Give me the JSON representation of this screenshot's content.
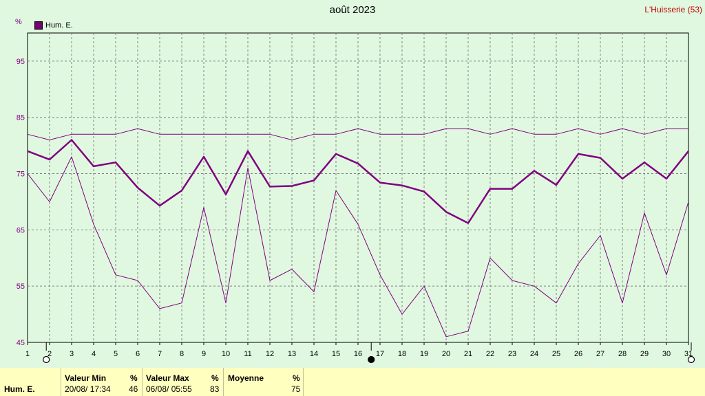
{
  "header": {
    "title": "août 2023",
    "station": "L'Huisserie (53)",
    "unit": "%"
  },
  "legend": {
    "label": "Hum. E.",
    "color": "#700070"
  },
  "chart_data": {
    "type": "line",
    "title": "août 2023",
    "x": [
      1,
      2,
      3,
      4,
      5,
      6,
      7,
      8,
      9,
      10,
      11,
      12,
      13,
      14,
      15,
      16,
      17,
      18,
      19,
      20,
      21,
      22,
      23,
      24,
      25,
      26,
      27,
      28,
      29,
      30,
      31
    ],
    "ylim": [
      45,
      100
    ],
    "yticks": [
      45,
      55,
      65,
      75,
      85,
      95
    ],
    "grid": true,
    "legend_position": "top-left",
    "series": [
      {
        "name": "Hum. E.",
        "role": "max",
        "values": [
          82,
          81,
          82,
          82,
          82,
          83,
          82,
          82,
          82,
          82,
          82,
          82,
          81,
          82,
          82,
          83,
          82,
          82,
          82,
          83,
          83,
          82,
          83,
          82,
          82,
          83,
          82,
          83,
          82,
          83,
          83
        ]
      },
      {
        "name": "Hum. E.",
        "role": "mean",
        "values": [
          79,
          77.5,
          81,
          76.3,
          77,
          72.5,
          69.3,
          72,
          78,
          71.3,
          79,
          72.7,
          72.8,
          73.8,
          78.5,
          76.8,
          73.4,
          72.9,
          71.8,
          68.2,
          66.2,
          72.3,
          72.3,
          75.5,
          73,
          78.5,
          77.8,
          74.1,
          77,
          74.1,
          79
        ]
      },
      {
        "name": "Hum. E.",
        "role": "min",
        "values": [
          75,
          70,
          78,
          66,
          57,
          56,
          51,
          52,
          69,
          52,
          76,
          56,
          58,
          54,
          72,
          66,
          57,
          50,
          55,
          46,
          47,
          60,
          56,
          55,
          52,
          59,
          64,
          52,
          68,
          57,
          70
        ]
      }
    ],
    "colors": {
      "line": "#800080",
      "grid": "#808080",
      "axis": "#000000"
    }
  },
  "footer": {
    "label": "Hum. E.",
    "min": {
      "header": "Valeur Min",
      "unit": "%",
      "date": "20/08/ 17:34",
      "value": "46"
    },
    "max": {
      "header": "Valeur Max",
      "unit": "%",
      "date": "06/08/ 05:55",
      "value": "83"
    },
    "avg": {
      "header": "Moyenne",
      "unit": "%",
      "value": "75"
    }
  }
}
